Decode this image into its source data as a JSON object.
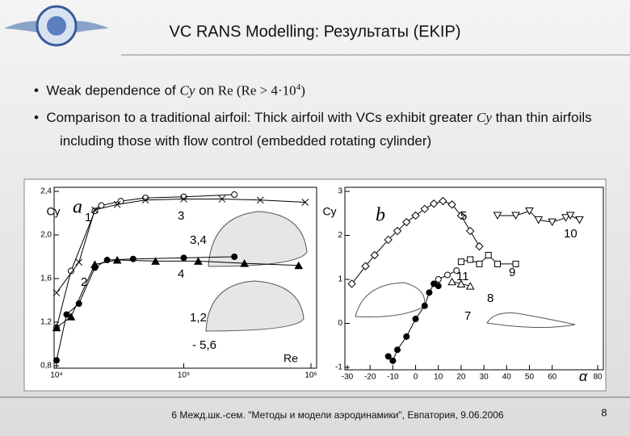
{
  "header": {
    "title": "VC RANS Modelling: Результаты (EKIP)"
  },
  "bullets": [
    [
      "Weak dependence of ",
      "Cy",
      " on ",
      "Re",
      " (Re > 4·10",
      "4",
      ")"
    ],
    [
      "Comparison to a traditional airfoil: Thick airfoil with VCs exhibit greater ",
      "Cy",
      " than thin airfoils including those with flow control (embedded rotating cylinder)"
    ]
  ],
  "chart_data": [
    {
      "type": "line",
      "xscale": "log",
      "xlabel": "Re",
      "ylabel": "Cy",
      "xlim": [
        10000,
        1000000
      ],
      "ylim": [
        0.8,
        2.4
      ],
      "xticks": [
        {
          "value": 10000,
          "label": "10⁴"
        },
        {
          "value": 100000,
          "label": "10⁵"
        },
        {
          "value": 1000000,
          "label": "10⁶"
        }
      ],
      "yticks": [
        {
          "value": 0.8,
          "label": "0,8"
        },
        {
          "value": 1.2,
          "label": "1,2"
        },
        {
          "value": 1.6,
          "label": "1,6"
        },
        {
          "value": 2.0,
          "label": "2,0"
        },
        {
          "value": 2.4,
          "label": "2,4"
        }
      ],
      "annotations": [
        "a",
        "3,4",
        "1,2",
        "- 5,6"
      ],
      "series": [
        {
          "name": "1",
          "color": "#000000",
          "marker": "open-circle",
          "x": [
            10000,
            13000,
            20000,
            22500,
            32000,
            50000,
            100000,
            250000
          ],
          "values": [
            1.15,
            1.67,
            2.22,
            2.27,
            2.31,
            2.34,
            2.35,
            2.37
          ]
        },
        {
          "name": "2",
          "color": "#000000",
          "marker": "filled-circle",
          "x": [
            10000,
            12000,
            15000,
            20000,
            25000,
            40000,
            100000,
            250000
          ],
          "values": [
            0.85,
            1.27,
            1.37,
            1.7,
            1.77,
            1.78,
            1.79,
            1.8
          ]
        },
        {
          "name": "3",
          "color": "#000000",
          "marker": "cross",
          "x": [
            10000,
            15000,
            20000,
            30000,
            50000,
            100000,
            200000,
            400000,
            900000
          ],
          "values": [
            1.47,
            1.75,
            2.23,
            2.28,
            2.32,
            2.33,
            2.33,
            2.32,
            2.3
          ]
        },
        {
          "name": "4",
          "color": "#000000",
          "marker": "filled-triangle",
          "x": [
            10000,
            13000,
            20000,
            30000,
            60000,
            130000,
            300000,
            800000
          ],
          "values": [
            1.15,
            1.25,
            1.73,
            1.77,
            1.76,
            1.76,
            1.74,
            1.72
          ]
        }
      ]
    },
    {
      "type": "line",
      "xlabel": "α",
      "ylabel": "Cy",
      "xlim": [
        -30,
        80
      ],
      "ylim": [
        -1,
        3
      ],
      "xticks": [
        -30,
        -20,
        -10,
        0,
        10,
        20,
        30,
        40,
        50,
        60,
        80
      ],
      "yticks": [
        -1,
        0,
        1,
        2,
        3
      ],
      "annotations": [
        "b"
      ],
      "series": [
        {
          "name": "5",
          "color": "#000000",
          "marker": "open-diamond",
          "x": [
            -28,
            -22,
            -18,
            -12,
            -8,
            -4,
            0,
            4,
            8,
            12,
            16,
            20,
            24,
            28
          ],
          "values": [
            0.9,
            1.3,
            1.55,
            1.9,
            2.1,
            2.3,
            2.45,
            2.6,
            2.72,
            2.78,
            2.7,
            2.45,
            2.1,
            1.75
          ]
        },
        {
          "name": "10",
          "color": "#000000",
          "marker": "open-down-triangle",
          "x": [
            36,
            44,
            50,
            54,
            60,
            66,
            68,
            72
          ],
          "values": [
            2.45,
            2.45,
            2.55,
            2.35,
            2.3,
            2.4,
            2.45,
            2.35
          ]
        },
        {
          "name": "9",
          "color": "#000000",
          "marker": "open-square",
          "x": [
            20,
            24,
            28,
            32,
            36,
            44
          ],
          "values": [
            1.4,
            1.45,
            1.35,
            1.55,
            1.35,
            1.35
          ]
        },
        {
          "name": "11",
          "color": "#000000",
          "marker": "filled-circle",
          "x": [
            -12,
            -10,
            -8,
            -4,
            0,
            4,
            6,
            8,
            10
          ],
          "values": [
            -0.75,
            -0.85,
            -0.6,
            -0.3,
            0.1,
            0.4,
            0.7,
            0.9,
            0.85
          ]
        },
        {
          "name": "7",
          "color": "#000000",
          "marker": "open-circle",
          "x": [
            10,
            14,
            18
          ],
          "values": [
            1.0,
            1.1,
            1.2
          ]
        },
        {
          "name": "8",
          "color": "#000000",
          "marker": "open-triangle",
          "x": [
            16,
            20,
            24
          ],
          "values": [
            0.95,
            0.9,
            0.85
          ]
        }
      ]
    }
  ],
  "footer": {
    "text": "6 Межд.шк.-сем. \"Методы и модели аэродинамики\", Евпатория, 9.06.2006",
    "page": "8"
  }
}
